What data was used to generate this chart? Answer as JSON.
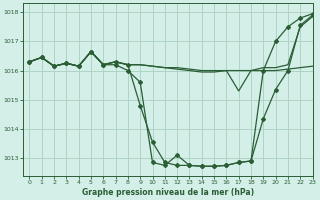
{
  "xlabel": "Graphe pression niveau de la mer (hPa)",
  "xlim": [
    -0.5,
    23
  ],
  "ylim": [
    1012.4,
    1018.3
  ],
  "yticks": [
    1013,
    1014,
    1015,
    1016,
    1017,
    1018
  ],
  "xticks": [
    0,
    1,
    2,
    3,
    4,
    5,
    6,
    7,
    8,
    9,
    10,
    11,
    12,
    13,
    14,
    15,
    16,
    17,
    18,
    19,
    20,
    21,
    22,
    23
  ],
  "background_color": "#d4eee8",
  "line_color": "#2a5e35",
  "grid_color": "#aed4c4",
  "line1_x": [
    0,
    1,
    2,
    3,
    4,
    5,
    6,
    7,
    8,
    9,
    10,
    11,
    12,
    13,
    14,
    15,
    16,
    17,
    18,
    19,
    20,
    21,
    22,
    23
  ],
  "line1_y": [
    1016.3,
    1016.45,
    1016.15,
    1016.25,
    1016.15,
    1016.65,
    1016.2,
    1016.3,
    1016.2,
    1016.2,
    1016.15,
    1016.1,
    1016.1,
    1016.05,
    1016.0,
    1016.0,
    1016.0,
    1016.0,
    1016.0,
    1016.0,
    1016.0,
    1016.05,
    1016.1,
    1016.15
  ],
  "line2_x": [
    0,
    1,
    2,
    3,
    4,
    5,
    6,
    7,
    8,
    9,
    10,
    11,
    12,
    13,
    14,
    15,
    16,
    17,
    18,
    19,
    20,
    21,
    22,
    23
  ],
  "line2_y": [
    1016.3,
    1016.45,
    1016.15,
    1016.25,
    1016.15,
    1016.65,
    1016.2,
    1016.3,
    1016.2,
    1016.2,
    1016.15,
    1016.1,
    1016.05,
    1016.0,
    1015.95,
    1015.95,
    1016.0,
    1015.3,
    1016.0,
    1016.1,
    1016.1,
    1016.2,
    1017.5,
    1017.85
  ],
  "line3_x": [
    0,
    1,
    2,
    3,
    4,
    5,
    6,
    7,
    8,
    9,
    10,
    11,
    12,
    13,
    14,
    15,
    16,
    17,
    18,
    19,
    20,
    21,
    22,
    23
  ],
  "line3_y": [
    1016.3,
    1016.45,
    1016.15,
    1016.25,
    1016.15,
    1016.65,
    1016.2,
    1016.3,
    1016.2,
    1014.8,
    1013.55,
    1012.85,
    1012.75,
    1012.75,
    1012.72,
    1012.72,
    1012.75,
    1012.85,
    1012.9,
    1014.35,
    1015.35,
    1016.0,
    1017.55,
    1017.9
  ],
  "line4_x": [
    0,
    1,
    2,
    3,
    4,
    5,
    6,
    7,
    8,
    9,
    10,
    11,
    12,
    13,
    14,
    15,
    16,
    17,
    18,
    19,
    20,
    21,
    22,
    23
  ],
  "line4_y": [
    1016.3,
    1016.45,
    1016.15,
    1016.25,
    1016.15,
    1016.65,
    1016.2,
    1016.2,
    1016.0,
    1015.6,
    1012.85,
    1012.75,
    1013.1,
    1012.75,
    1012.72,
    1012.72,
    1012.75,
    1012.85,
    1012.9,
    1016.0,
    1017.0,
    1017.5,
    1017.8,
    1017.95
  ]
}
